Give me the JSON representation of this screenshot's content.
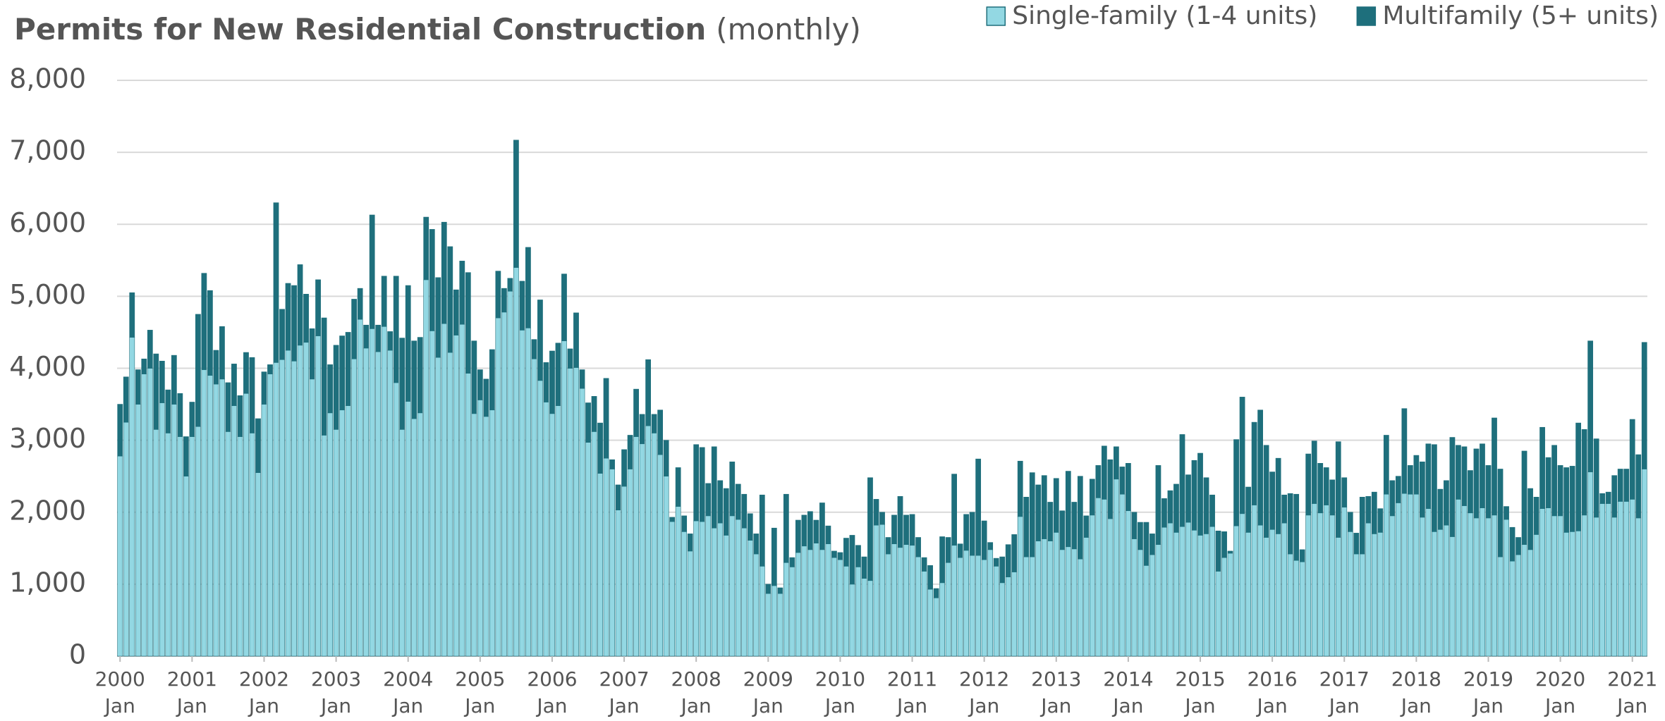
{
  "chart_data": {
    "type": "stacked_bar",
    "title": "Permits for New Residential Construction",
    "subtitle": "(monthly)",
    "legend": "top-right",
    "grid": true,
    "ylim": [
      0,
      8000
    ],
    "yticks": [
      0,
      {
        "value": 1000,
        "label": "1,000"
      },
      {
        "value": 2000,
        "label": "2,000"
      },
      {
        "value": 3000,
        "label": "3,000"
      },
      {
        "value": 4000,
        "label": "4,000"
      },
      {
        "value": 5000,
        "label": "5,000"
      },
      {
        "value": 6000,
        "label": "6,000"
      },
      {
        "value": 7000,
        "label": "7,000"
      },
      {
        "value": 8000,
        "label": "8,000"
      }
    ],
    "categories": [
      "2000\nJan",
      null,
      null,
      null,
      null,
      null,
      null,
      null,
      null,
      null,
      null,
      null,
      "2001\nJan",
      null,
      null,
      null,
      null,
      null,
      null,
      null,
      null,
      null,
      null,
      null,
      "2002\nJan",
      null,
      null,
      null,
      null,
      null,
      null,
      null,
      null,
      null,
      null,
      null,
      "2003\nJan",
      null,
      null,
      null,
      null,
      null,
      null,
      null,
      null,
      null,
      null,
      null,
      "2004\nJan",
      null,
      null,
      null,
      null,
      null,
      null,
      null,
      null,
      null,
      null,
      null,
      "2005\nJan",
      null,
      null,
      null,
      null,
      null,
      null,
      null,
      null,
      null,
      null,
      null,
      "2006\nJan",
      null,
      null,
      null,
      null,
      null,
      null,
      null,
      null,
      null,
      null,
      null,
      "2007\nJan",
      null,
      null,
      null,
      null,
      null,
      null,
      null,
      null,
      null,
      null,
      null,
      "2008\nJan",
      null,
      null,
      null,
      null,
      null,
      null,
      null,
      null,
      null,
      null,
      null,
      "2009\nJan",
      null,
      null,
      null,
      null,
      null,
      null,
      null,
      null,
      null,
      null,
      null,
      "2010\nJan",
      null,
      null,
      null,
      null,
      null,
      null,
      null,
      null,
      null,
      null,
      null,
      "2011\nJan",
      null,
      null,
      null,
      null,
      null,
      null,
      null,
      null,
      null,
      null,
      null,
      "2012\nJan",
      null,
      null,
      null,
      null,
      null,
      null,
      null,
      null,
      null,
      null,
      null,
      "2013\nJan",
      null,
      null,
      null,
      null,
      null,
      null,
      null,
      null,
      null,
      null,
      null,
      "2014\nJan",
      null,
      null,
      null,
      null,
      null,
      null,
      null,
      null,
      null,
      null,
      null,
      "2015\nJan",
      null,
      null,
      null,
      null,
      null,
      null,
      null,
      null,
      null,
      null,
      null,
      "2016\nJan",
      null,
      null,
      null,
      null,
      null,
      null,
      null,
      null,
      null,
      null,
      null,
      "2017\nJan",
      null,
      null,
      null,
      null,
      null,
      null,
      null,
      null,
      null,
      null,
      null,
      "2018\nJan",
      null,
      null,
      null,
      null,
      null,
      null,
      null,
      null,
      null,
      null,
      null,
      "2019\nJan",
      null,
      null,
      null,
      null,
      null,
      null,
      null,
      null,
      null,
      null,
      null,
      "2020\nJan",
      null,
      null,
      null,
      null,
      null,
      null,
      null,
      null,
      null,
      null,
      null,
      "2021\nJan",
      null,
      null
    ],
    "series": [
      {
        "name": "Single-family (1-4 units)",
        "color": "#93d8e3",
        "values": [
          2780,
          3250,
          4430,
          3500,
          3920,
          4000,
          3150,
          3520,
          3100,
          3500,
          3050,
          2500,
          3050,
          3190,
          3980,
          3900,
          3780,
          3850,
          3120,
          3480,
          3050,
          3650,
          3100,
          2550,
          3500,
          3920,
          4080,
          4120,
          4250,
          4100,
          4320,
          4360,
          3850,
          4450,
          3070,
          3380,
          3150,
          3420,
          3480,
          4130,
          4680,
          4280,
          4550,
          4230,
          4580,
          4250,
          3800,
          3150,
          3540,
          3300,
          3380,
          5230,
          4520,
          4150,
          4620,
          4220,
          4460,
          4610,
          3930,
          3370,
          3560,
          3330,
          3420,
          4700,
          4780,
          5070,
          5400,
          4530,
          4560,
          4130,
          3830,
          3530,
          3370,
          3480,
          4380,
          4000,
          4010,
          3720,
          2970,
          3120,
          2540,
          2750,
          2600,
          2030,
          2360,
          2600,
          3050,
          2950,
          3200,
          3100,
          2800,
          2500,
          1870,
          2080,
          1730,
          1460,
          1880,
          1870,
          1950,
          1780,
          1850,
          1680,
          1950,
          1900,
          1780,
          1610,
          1420,
          1250,
          870,
          980,
          870,
          1300,
          1240,
          1440,
          1530,
          1480,
          1570,
          1480,
          1560,
          1370,
          1340,
          1250,
          1000,
          1240,
          1080,
          1050,
          1820,
          1830,
          1420,
          1560,
          1510,
          1550,
          1540,
          1380,
          1180,
          930,
          810,
          1020,
          1300,
          1540,
          1370,
          1470,
          1400,
          1400,
          1340,
          1480,
          1250,
          1020,
          1100,
          1170,
          1940,
          1380,
          1380,
          1600,
          1630,
          1600,
          1720,
          1480,
          1520,
          1490,
          1350,
          1650,
          1960,
          2200,
          2180,
          1910,
          2460,
          2250,
          2020,
          1630,
          1480,
          1260,
          1410,
          1550,
          1790,
          1850,
          1720,
          1800,
          1860,
          1750,
          1680,
          1700,
          1800,
          1180,
          1370,
          1430,
          1810,
          1980,
          1720,
          2100,
          1820,
          1650,
          1760,
          1700,
          1850,
          1420,
          1330,
          1310,
          1960,
          2120,
          1990,
          2100,
          1960,
          1650,
          2070,
          1730,
          1420,
          1420,
          1850,
          1700,
          1720,
          2250,
          1950,
          2130,
          2260,
          2250,
          2250,
          1930,
          2050,
          1730,
          1760,
          1820,
          1660,
          2180,
          2090,
          1990,
          1920,
          2060,
          1920,
          1960,
          1380,
          1900,
          1320,
          1410,
          1550,
          1480,
          1690,
          2050,
          2060,
          1950,
          1950,
          1720,
          1730,
          1740,
          1960,
          2560,
          1930,
          2120,
          2120,
          1930,
          2150,
          2150,
          2180,
          1920,
          2600
        ]
      },
      {
        "name": "Multifamily (5+ units)",
        "color": "#1e6f7c",
        "values": [
          720,
          630,
          620,
          480,
          210,
          530,
          1050,
          580,
          600,
          680,
          600,
          550,
          480,
          1560,
          1340,
          1180,
          470,
          730,
          680,
          580,
          570,
          570,
          1050,
          750,
          450,
          130,
          2220,
          700,
          930,
          1050,
          1120,
          670,
          700,
          780,
          1630,
          670,
          1170,
          1030,
          1020,
          830,
          430,
          320,
          1580,
          370,
          700,
          260,
          1480,
          1270,
          1610,
          1080,
          1050,
          870,
          1410,
          1110,
          1410,
          1470,
          630,
          880,
          1400,
          1010,
          420,
          520,
          840,
          650,
          330,
          180,
          1770,
          680,
          1120,
          270,
          1120,
          550,
          870,
          870,
          930,
          270,
          760,
          260,
          550,
          490,
          700,
          1110,
          130,
          350,
          510,
          470,
          660,
          410,
          920,
          260,
          620,
          500,
          60,
          540,
          220,
          240,
          1060,
          1030,
          450,
          1130,
          590,
          650,
          750,
          490,
          470,
          370,
          280,
          990,
          130,
          800,
          80,
          950,
          130,
          450,
          430,
          530,
          320,
          650,
          250,
          90,
          100,
          390,
          680,
          300,
          300,
          1430,
          360,
          170,
          230,
          400,
          710,
          410,
          430,
          270,
          190,
          330,
          130,
          640,
          350,
          990,
          190,
          500,
          600,
          1340,
          540,
          100,
          110,
          360,
          450,
          520,
          770,
          830,
          1170,
          780,
          880,
          540,
          750,
          540,
          1050,
          650,
          1150,
          300,
          500,
          450,
          740,
          820,
          450,
          380,
          660,
          370,
          380,
          600,
          290,
          1100,
          400,
          450,
          670,
          1280,
          660,
          970,
          1140,
          780,
          440,
          560,
          360,
          30,
          1200,
          1620,
          630,
          1150,
          1600,
          1280,
          800,
          1050,
          390,
          840,
          920,
          170,
          850,
          870,
          690,
          520,
          490,
          1330,
          410,
          270,
          290,
          790,
          370,
          580,
          330,
          820,
          490,
          370,
          1180,
          400,
          540,
          770,
          900,
          1210,
          560,
          620,
          1380,
          750,
          820,
          590,
          960,
          890,
          730,
          1350,
          1220,
          180,
          470,
          240,
          1300,
          850,
          520,
          1130,
          700,
          980,
          700,
          900,
          910,
          1500,
          1190,
          1820,
          1090,
          140,
          160,
          580,
          450,
          450,
          1110,
          880,
          1760
        ]
      }
    ]
  }
}
